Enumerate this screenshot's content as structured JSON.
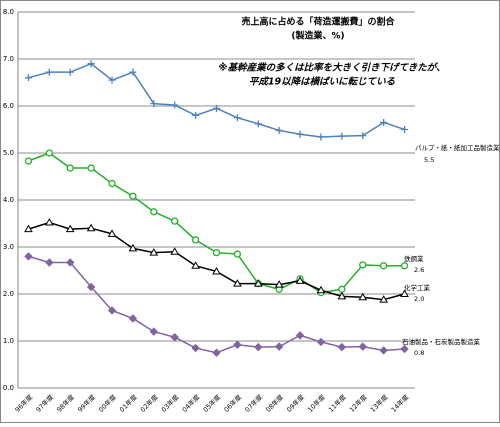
{
  "chart_data": {
    "type": "line",
    "title": "売上高に占める「荷造運搬費」の割合",
    "subtitle": "(製造業、%)",
    "annotations": [
      "※基幹産業の多くは比率を大きく引き下げてきたが、",
      "平成19以降は横ばいに転じている"
    ],
    "categories": [
      "96年度",
      "97年度",
      "98年度",
      "99年度",
      "00年度",
      "01年度",
      "02年度",
      "03年度",
      "04年度",
      "05年度",
      "06年度",
      "07年度",
      "08年度",
      "09年度",
      "10年度",
      "11年度",
      "12年度",
      "13年度",
      "14年度"
    ],
    "ylim": [
      0,
      8
    ],
    "yticks": [
      {
        "value": 0,
        "label": "0.0"
      },
      {
        "value": 1,
        "label": "1.0"
      },
      {
        "value": 2,
        "label": "2.0"
      },
      {
        "value": 3,
        "label": "3.0"
      },
      {
        "value": 4,
        "label": "4.0"
      },
      {
        "value": 5,
        "label": "5.0"
      },
      {
        "value": 6,
        "label": "6.0"
      },
      {
        "value": 7,
        "label": "7.0"
      },
      {
        "value": 8,
        "label": "8.0"
      }
    ],
    "grid": true,
    "series": [
      {
        "name": "パルプ・紙・紙加工品製造業",
        "color": "#4f81bd",
        "marker": "plus",
        "values": [
          6.6,
          6.72,
          6.72,
          6.9,
          6.55,
          6.72,
          6.05,
          6.02,
          5.8,
          5.95,
          5.75,
          5.62,
          5.48,
          5.4,
          5.34,
          5.36,
          5.37,
          5.65,
          5.5
        ],
        "value_labels": [
          null,
          null,
          null,
          null,
          null,
          null,
          null,
          null,
          null,
          null,
          null,
          null,
          null,
          null,
          null,
          null,
          null,
          null,
          "5.5"
        ]
      },
      {
        "name": "鉄鋼業",
        "color": "#22b02a",
        "marker": "circle",
        "values": [
          4.83,
          5.0,
          4.68,
          4.68,
          4.35,
          4.08,
          3.75,
          3.55,
          3.15,
          2.88,
          2.85,
          2.22,
          2.1,
          2.32,
          2.03,
          2.1,
          2.62,
          2.6,
          2.6
        ],
        "value_labels": [
          null,
          null,
          null,
          null,
          null,
          null,
          null,
          null,
          null,
          null,
          null,
          null,
          null,
          null,
          null,
          null,
          null,
          null,
          "2.6"
        ]
      },
      {
        "name": "化学工業",
        "color": "#000000",
        "marker": "triangle",
        "values": [
          3.38,
          3.52,
          3.38,
          3.4,
          3.28,
          2.97,
          2.88,
          2.9,
          2.6,
          2.48,
          2.22,
          2.22,
          2.2,
          2.28,
          2.08,
          1.95,
          1.93,
          1.88,
          2.0
        ],
        "value_labels": [
          null,
          null,
          null,
          null,
          null,
          null,
          null,
          null,
          null,
          null,
          null,
          null,
          null,
          null,
          null,
          null,
          null,
          null,
          "2.0"
        ]
      },
      {
        "name": "石油製品・石炭製品製造業",
        "color": "#8064a2",
        "marker": "diamond",
        "values": [
          2.8,
          2.67,
          2.67,
          2.15,
          1.65,
          1.48,
          1.2,
          1.08,
          0.85,
          0.75,
          0.92,
          0.87,
          0.88,
          1.12,
          0.98,
          0.87,
          0.88,
          0.8,
          0.83
        ],
        "value_labels": [
          null,
          null,
          null,
          null,
          null,
          null,
          null,
          null,
          null,
          null,
          null,
          null,
          null,
          null,
          null,
          null,
          null,
          null,
          "0.8"
        ]
      }
    ]
  }
}
